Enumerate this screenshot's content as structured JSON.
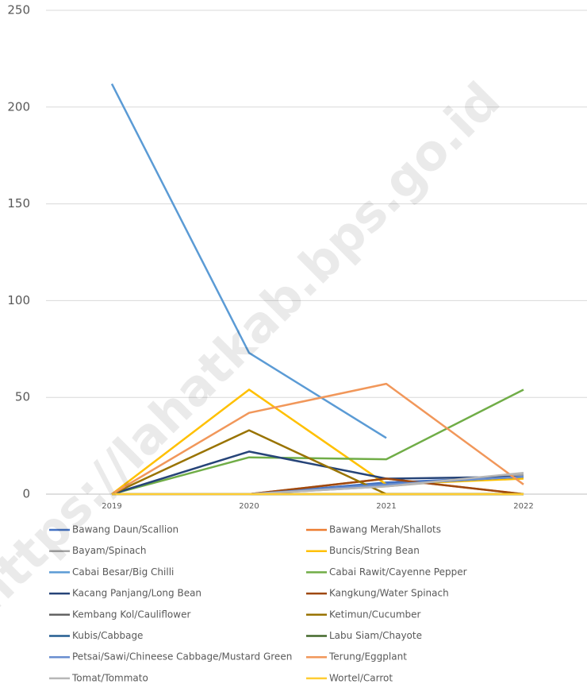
{
  "chart_data": {
    "type": "line",
    "categories": [
      "2019",
      "2020",
      "2021",
      "2022"
    ],
    "ylim": [
      0,
      250
    ],
    "yticks": [
      0,
      50,
      100,
      150,
      200,
      250
    ],
    "grid": true,
    "watermark": "https://lahatkab.bps.go.id",
    "series": [
      {
        "name": "Bawang Daun/Scallion",
        "color": "#4472c4",
        "values": [
          0,
          0,
          6,
          9
        ]
      },
      {
        "name": "Bawang Merah/Shallots",
        "color": "#ed7d31",
        "values": [
          0,
          0,
          8,
          0
        ]
      },
      {
        "name": "Bayam/Spinach",
        "color": "#a5a5a5",
        "values": [
          0,
          0,
          4,
          10
        ]
      },
      {
        "name": "Buncis/String Bean",
        "color": "#ffc000",
        "values": [
          0,
          54,
          5,
          8
        ]
      },
      {
        "name": "Cabai Besar/Big Chilli",
        "color": "#5b9bd5",
        "values": [
          212,
          73,
          29,
          null
        ]
      },
      {
        "name": "Cabai Rawit/Cayenne Pepper",
        "color": "#70ad47",
        "values": [
          0,
          19,
          18,
          54
        ]
      },
      {
        "name": "Kacang Panjang/Long Bean",
        "color": "#264478",
        "values": [
          0,
          22,
          8,
          9
        ]
      },
      {
        "name": "Kangkung/Water Spinach",
        "color": "#9e480e",
        "values": [
          0,
          0,
          8,
          0
        ]
      },
      {
        "name": "Kembang Kol/Cauliflower",
        "color": "#636363",
        "values": [
          0,
          0,
          0,
          0
        ]
      },
      {
        "name": "Ketimun/Cucumber",
        "color": "#997300",
        "values": [
          0,
          33,
          0,
          0
        ]
      },
      {
        "name": "Kubis/Cabbage",
        "color": "#255e91",
        "values": [
          0,
          0,
          5,
          9
        ]
      },
      {
        "name": "Labu Siam/Chayote",
        "color": "#43682b",
        "values": [
          0,
          0,
          0,
          0
        ]
      },
      {
        "name": "Petsai/Sawi/Chineese Cabbage/Mustard Green",
        "color": "#698ed0",
        "values": [
          0,
          0,
          5,
          9
        ]
      },
      {
        "name": "Terung/Eggplant",
        "color": "#f1975a",
        "values": [
          0,
          42,
          57,
          5
        ]
      },
      {
        "name": "Tomat/Tommato",
        "color": "#b7b7b7",
        "values": [
          0,
          0,
          4,
          11
        ]
      },
      {
        "name": "Wortel/Carrot",
        "color": "#ffcd33",
        "values": [
          0,
          0,
          0,
          0
        ]
      }
    ]
  }
}
